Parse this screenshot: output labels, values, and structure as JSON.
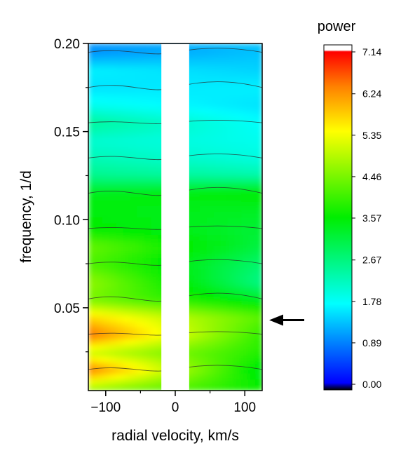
{
  "chart_data": {
    "type": "heatmap",
    "title": "",
    "xlabel": "radial velocity, km/s",
    "ylabel": "frequency, 1/d",
    "xlim": [
      -125,
      125
    ],
    "ylim": [
      0.003,
      0.2
    ],
    "x_ticks": [
      -100,
      0,
      100
    ],
    "x_tick_labels": [
      "−100",
      "0",
      "100"
    ],
    "y_ticks": [
      0.05,
      0.1,
      0.15,
      0.2
    ],
    "y_tick_labels": [
      "0.05",
      "0.10",
      "0.15",
      "0.20"
    ],
    "masked_x_range": [
      -20,
      20
    ],
    "colorbar": {
      "label": "power",
      "min": 0.0,
      "max": 7.14,
      "ticks": [
        0.0,
        0.89,
        1.78,
        2.67,
        3.57,
        4.46,
        5.35,
        6.24,
        7.14
      ],
      "tick_labels": [
        "0.00",
        "0.89",
        "1.78",
        "2.67",
        "3.57",
        "4.46",
        "5.35",
        "6.24",
        "7.14"
      ],
      "colormap": "rainbow (black → blue → cyan → green → yellow → orange → red → white)"
    },
    "annotation": {
      "type": "arrow",
      "points_to_frequency": 0.043,
      "direction": "left"
    },
    "power_profile": {
      "frequency": [
        0.005,
        0.015,
        0.025,
        0.035,
        0.045,
        0.055,
        0.065,
        0.075,
        0.085,
        0.095,
        0.105,
        0.115,
        0.125,
        0.135,
        0.145,
        0.155,
        0.165,
        0.175,
        0.185,
        0.195
      ],
      "power_at_left_edge": [
        4.8,
        6.3,
        5.0,
        6.4,
        5.6,
        4.4,
        4.6,
        4.1,
        4.3,
        3.6,
        3.5,
        3.4,
        2.6,
        2.3,
        2.1,
        2.5,
        1.9,
        1.6,
        1.7,
        1.1
      ],
      "power_at_right_edge": [
        3.6,
        3.4,
        3.8,
        3.9,
        4.2,
        3.3,
        2.6,
        2.8,
        3.1,
        3.2,
        3.3,
        3.6,
        2.4,
        2.0,
        1.9,
        1.8,
        1.6,
        1.7,
        1.5,
        1.4
      ]
    }
  }
}
